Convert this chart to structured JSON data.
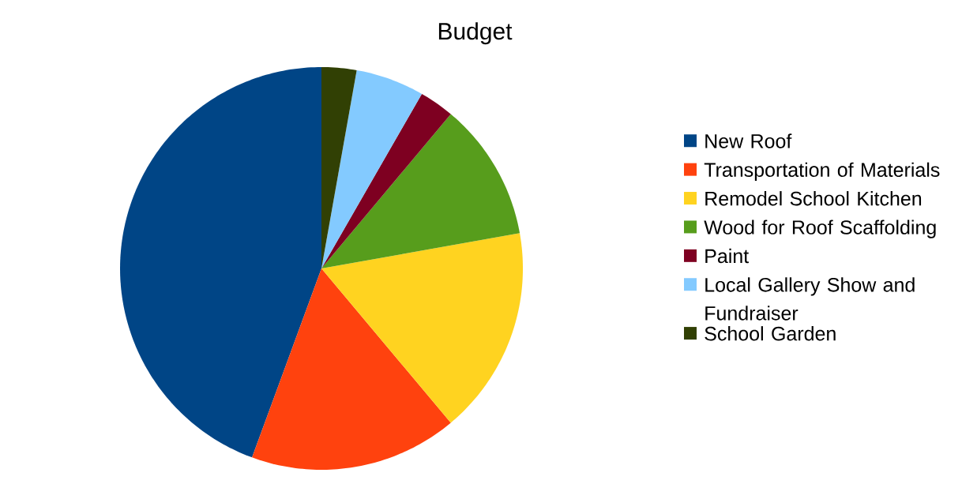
{
  "chart_data": {
    "type": "pie",
    "title": "Budget",
    "categories": [
      "New Roof",
      "Transportation of Materials",
      "Remodel School Kitchen",
      "Wood for Roof Scaffolding",
      "Paint",
      "Local Gallery Show and Fundraiser",
      "School Garden"
    ],
    "values": [
      44.4,
      16.7,
      16.7,
      11.1,
      2.8,
      5.5,
      2.8
    ],
    "colors": [
      "#004586",
      "#ff420e",
      "#ffd320",
      "#579d1c",
      "#7e0021",
      "#83caff",
      "#314004"
    ],
    "legend": "right"
  }
}
